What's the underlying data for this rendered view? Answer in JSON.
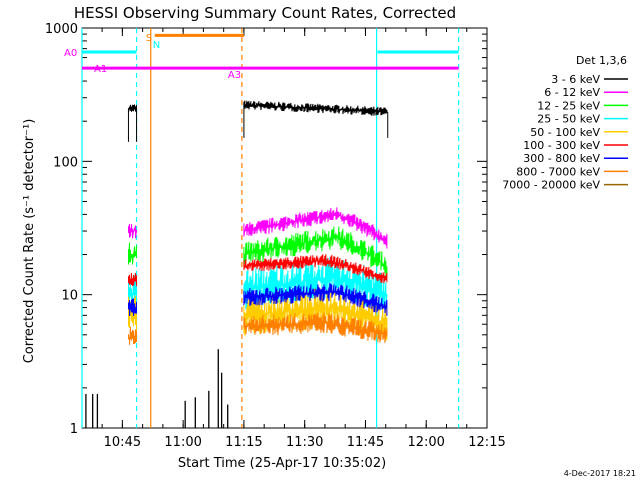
{
  "chart_data": {
    "type": "line",
    "title": "HESSI Observing Summary Count Rates, Corrected",
    "xlabel": "Start Time (25-Apr-17 10:35:02)",
    "ylabel": "Corrected Count Rate (s⁻¹ detector⁻¹)",
    "yscale": "log",
    "ylim": [
      1,
      1000
    ],
    "xlim": [
      "10:35:02",
      "12:15:00"
    ],
    "xticks": [
      "10:45",
      "11:00",
      "11:15",
      "11:30",
      "11:45",
      "12:00",
      "12:15"
    ],
    "yticks": [
      "1",
      "10",
      "100",
      "1000"
    ],
    "legend_title": "Det 1,3,6",
    "legend_position": "right",
    "footer_date": "4-Dec-2017 18:21",
    "attenuator_markers": [
      {
        "label": "A0",
        "time": "10:35:02",
        "level": 660
      },
      {
        "label": "A1",
        "time": "10:37:30",
        "level": 500
      },
      {
        "label": "A3",
        "time": "11:14:30",
        "level": 450
      }
    ],
    "flag_markers": [
      {
        "label": "S",
        "time": "10:51:30"
      },
      {
        "label": "N",
        "time": "10:52:30"
      }
    ],
    "flag_bars": [
      {
        "color": "#00ffff",
        "segments": [
          [
            "10:35:02",
            "10:48:30"
          ],
          [
            "11:48:00",
            "12:08:00"
          ]
        ],
        "level": 660
      },
      {
        "color": "#ff00ff",
        "segments": [
          [
            "10:35:02",
            "12:08:00"
          ]
        ],
        "level": 500
      },
      {
        "color": "#ff8000",
        "segments": [
          [
            "10:53:00",
            "11:15:00"
          ]
        ],
        "level": 880
      }
    ],
    "vertical_lines": [
      {
        "time": "10:35:02",
        "color": "#00ffff",
        "style": "solid"
      },
      {
        "time": "10:48:30",
        "color": "#00ffff",
        "style": "dashed"
      },
      {
        "time": "10:52:00",
        "color": "#ff8000",
        "style": "solid"
      },
      {
        "time": "11:14:30",
        "color": "#ff8000",
        "style": "dashed"
      },
      {
        "time": "11:47:45",
        "color": "#00ffff",
        "style": "solid"
      },
      {
        "time": "12:08:00",
        "color": "#00ffff",
        "style": "dashed"
      }
    ],
    "series": [
      {
        "name": "3 - 6 keV",
        "color": "#000000",
        "segments": [
          {
            "t0": "10:46:30",
            "t1": "10:48:30",
            "y": 250,
            "noise": 0.035,
            "edge_low": 140
          },
          {
            "t0": "11:15:00",
            "t1": "11:50:30",
            "y_start": 265,
            "y_end": 235,
            "noise": 0.035,
            "edge_low": 150
          }
        ],
        "spikes": [
          {
            "t": "10:36:00",
            "y": 1.8
          },
          {
            "t": "10:37:40",
            "y": 1.8
          },
          {
            "t": "10:38:50",
            "y": 1.8
          },
          {
            "t": "11:00:30",
            "y": 1.6
          },
          {
            "t": "11:03:00",
            "y": 1.7
          },
          {
            "t": "11:06:20",
            "y": 1.9
          },
          {
            "t": "11:08:40",
            "y": 3.9
          },
          {
            "t": "11:09:30",
            "y": 2.6
          },
          {
            "t": "11:11:00",
            "y": 1.5
          }
        ]
      },
      {
        "name": "6 - 12 keV",
        "color": "#ff00ff",
        "segments": [
          {
            "t0": "10:46:30",
            "t1": "10:48:30",
            "y": 30,
            "noise": 0.06
          },
          {
            "t0": "11:15:00",
            "t1": "11:50:30",
            "y_start": 30,
            "y_peak": 40,
            "t_peak": "11:38:00",
            "y_end": 25,
            "noise": 0.06
          }
        ]
      },
      {
        "name": "12 - 25 keV",
        "color": "#00ff00",
        "segments": [
          {
            "t0": "10:46:30",
            "t1": "10:48:30",
            "y": 20,
            "noise": 0.09
          },
          {
            "t0": "11:15:00",
            "t1": "11:50:30",
            "y_start": 20,
            "y_peak": 27,
            "t_peak": "11:38:00",
            "y_end": 16,
            "noise": 0.09
          }
        ]
      },
      {
        "name": "25 - 50 keV",
        "color": "#00ffff",
        "segments": [
          {
            "t0": "10:46:30",
            "t1": "10:48:30",
            "y": 10,
            "noise": 0.16
          },
          {
            "t0": "11:15:00",
            "t1": "11:50:30",
            "y_start": 11,
            "y_peak": 13.5,
            "t_peak": "11:38:00",
            "y_end": 10,
            "noise": 0.16
          }
        ]
      },
      {
        "name": "50 - 100 keV",
        "color": "#ffcc00",
        "segments": [
          {
            "t0": "10:46:30",
            "t1": "10:48:30",
            "y": 7,
            "noise": 0.16
          },
          {
            "t0": "11:15:00",
            "t1": "11:50:30",
            "y_start": 7,
            "y_peak": 8,
            "t_peak": "11:38:00",
            "y_end": 6,
            "noise": 0.16
          }
        ]
      },
      {
        "name": "100 - 300 keV",
        "color": "#ff0000",
        "segments": [
          {
            "t0": "10:46:30",
            "t1": "10:48:30",
            "y": 13,
            "noise": 0.05
          },
          {
            "t0": "11:15:00",
            "t1": "11:50:30",
            "y_start": 16.5,
            "y_peak": 18,
            "t_peak": "11:36:00",
            "y_end": 13,
            "noise": 0.05
          }
        ]
      },
      {
        "name": "300 - 800 keV",
        "color": "#0000ff",
        "segments": [
          {
            "t0": "10:46:30",
            "t1": "10:48:30",
            "y": 8,
            "noise": 0.07
          },
          {
            "t0": "11:15:00",
            "t1": "11:50:30",
            "y_start": 9.5,
            "y_peak": 10.5,
            "t_peak": "11:38:00",
            "y_end": 8,
            "noise": 0.07
          }
        ]
      },
      {
        "name": "800 - 7000 keV",
        "color": "#ff8000",
        "segments": [
          {
            "t0": "10:46:30",
            "t1": "10:48:30",
            "y": 4.8,
            "noise": 0.08
          },
          {
            "t0": "11:15:00",
            "t1": "11:50:30",
            "y_start": 5.8,
            "y_peak": 6.2,
            "t_peak": "11:35:00",
            "y_end": 5,
            "noise": 0.08
          }
        ]
      },
      {
        "name": "7000 - 20000 keV",
        "color": "#996600",
        "segments": []
      }
    ]
  }
}
